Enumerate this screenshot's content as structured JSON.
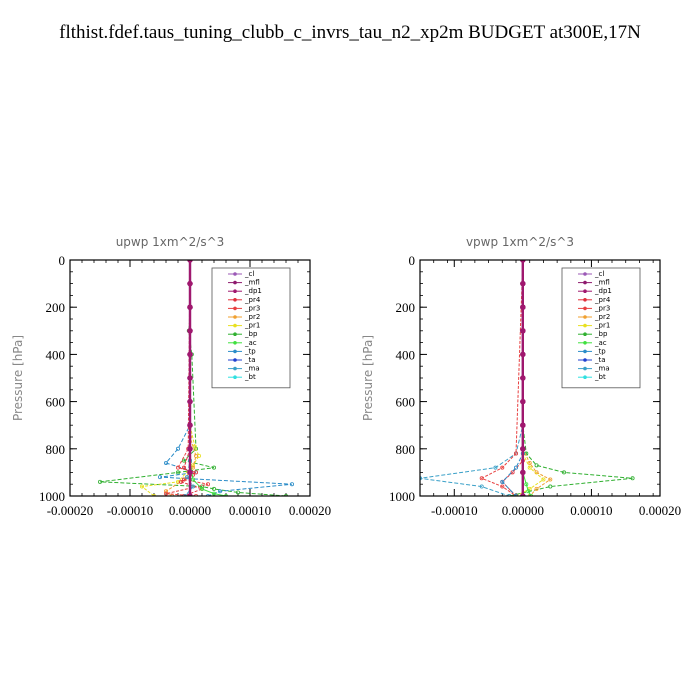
{
  "title": "flthist.fdef.taus_tuning_clubb_c_invrs_tau_n2_xp2m  BUDGET at300E,17N",
  "series_styles": [
    {
      "name": "_cl",
      "color": "#9b59b6"
    },
    {
      "name": "_mfl",
      "color": "#8e1a6e"
    },
    {
      "name": "_dp1",
      "color": "#a0186e"
    },
    {
      "name": "_pr4",
      "color": "#e0303c"
    },
    {
      "name": "_pr3",
      "color": "#e84040"
    },
    {
      "name": "_pr2",
      "color": "#f0a030"
    },
    {
      "name": "_pr1",
      "color": "#e8e020"
    },
    {
      "name": "_bp",
      "color": "#30b030"
    },
    {
      "name": "_ac",
      "color": "#40e040"
    },
    {
      "name": "_tp",
      "color": "#2a8cc8"
    },
    {
      "name": "_ta",
      "color": "#2040d0"
    },
    {
      "name": "_ma",
      "color": "#3aa0c8"
    },
    {
      "name": "_bt",
      "color": "#30e0e0"
    }
  ],
  "chart_data": [
    {
      "type": "line",
      "title": "upwp  1xm^2/s^3",
      "xlabel": "",
      "ylabel": "Pressure [hPa]",
      "xlim": [
        -0.0002,
        0.0002
      ],
      "ylim": [
        1000,
        0
      ],
      "xticks": [
        "-0.00020",
        "-0.00010",
        "0.00000",
        "0.00010",
        "0.00020"
      ],
      "xtick_values": [
        -0.0002,
        -0.0001,
        0,
        0.0001,
        0.0002
      ],
      "yticks": [
        "0",
        "200",
        "400",
        "600",
        "800",
        "1000"
      ],
      "ytick_values": [
        0,
        200,
        400,
        600,
        800,
        1000
      ],
      "legend_position": "top-right",
      "series": [
        {
          "name": "_bp",
          "x": [
            0,
            1e-06,
            -2e-06,
            3e-06,
            1e-05,
            -1e-05,
            4e-05,
            -2e-05,
            -0.00015,
            2e-05,
            4e-05,
            8e-05,
            0.00016
          ],
          "y": [
            0,
            200,
            300,
            400,
            800,
            850,
            880,
            900,
            940,
            960,
            970,
            985,
            1000
          ]
        },
        {
          "name": "_tp",
          "x": [
            0,
            0,
            -2e-05,
            -4e-05,
            1e-05,
            -5e-05,
            0.00017,
            5e-05,
            3e-05
          ],
          "y": [
            0,
            700,
            800,
            860,
            900,
            920,
            950,
            980,
            1000
          ]
        },
        {
          "name": "_pr1",
          "x": [
            0,
            0,
            8e-06,
            1.5e-05,
            5e-06,
            -2e-05,
            -8e-05,
            -6e-05
          ],
          "y": [
            0,
            700,
            790,
            830,
            870,
            940,
            960,
            1000
          ]
        },
        {
          "name": "_pr2",
          "x": [
            0,
            0,
            1e-05,
            5e-06,
            -1e-05,
            -4e-05,
            -3e-05
          ],
          "y": [
            0,
            750,
            830,
            880,
            930,
            980,
            1000
          ]
        },
        {
          "name": "_pr3",
          "x": [
            0,
            -3e-06,
            -2e-05,
            1e-05,
            -1e-05,
            3e-05,
            -4e-05,
            1e-05
          ],
          "y": [
            0,
            800,
            880,
            900,
            930,
            950,
            990,
            1000
          ]
        },
        {
          "name": "_pr4",
          "x": [
            0,
            0,
            -1e-05,
            5e-06,
            -1.5e-05,
            2e-05,
            -1e-05
          ],
          "y": [
            0,
            800,
            880,
            910,
            940,
            970,
            1000
          ]
        },
        {
          "name": "_ac",
          "x": [
            0,
            0,
            5e-06,
            2e-05,
            4e-05,
            6e-05
          ],
          "y": [
            0,
            850,
            930,
            970,
            990,
            1000
          ]
        },
        {
          "name": "_ma",
          "x": [
            0,
            0,
            -5e-06,
            5e-06,
            -8e-06
          ],
          "y": [
            0,
            850,
            920,
            960,
            1000
          ]
        },
        {
          "name": "_cl",
          "x": [
            0,
            0,
            0,
            0,
            0,
            0,
            0,
            0,
            0,
            0,
            0
          ],
          "y": [
            0,
            100,
            200,
            300,
            400,
            500,
            600,
            700,
            800,
            900,
            1000
          ]
        },
        {
          "name": "_mfl",
          "x": [
            0,
            0,
            0,
            0,
            0,
            0,
            0,
            0,
            0,
            0,
            0
          ],
          "y": [
            0,
            100,
            200,
            300,
            400,
            500,
            600,
            700,
            800,
            900,
            1000
          ]
        },
        {
          "name": "_dp1",
          "x": [
            0,
            0,
            0,
            0,
            0,
            0,
            0,
            0,
            0,
            0,
            0
          ],
          "y": [
            0,
            100,
            200,
            300,
            400,
            500,
            600,
            700,
            800,
            900,
            1000
          ]
        }
      ]
    },
    {
      "type": "line",
      "title": "vpwp  1xm^2/s^3",
      "xlabel": "",
      "ylabel": "Pressure [hPa]",
      "xlim": [
        -0.00015,
        0.0002
      ],
      "ylim": [
        1000,
        0
      ],
      "xticks": [
        "-0.00010",
        "0.00000",
        "0.00010",
        "0.00020"
      ],
      "xtick_values": [
        -0.0001,
        0,
        0.0001,
        0.0002
      ],
      "yticks": [
        "0",
        "200",
        "400",
        "600",
        "800",
        "1000"
      ],
      "ytick_values": [
        0,
        200,
        400,
        600,
        800,
        1000
      ],
      "legend_position": "top-right",
      "series": [
        {
          "name": "_bp",
          "x": [
            0,
            0,
            5e-06,
            2e-05,
            6e-05,
            0.00016,
            4e-05,
            -2e-05
          ],
          "y": [
            0,
            700,
            820,
            870,
            900,
            925,
            960,
            1000
          ]
        },
        {
          "name": "_ma",
          "x": [
            0,
            0,
            -1e-05,
            -4e-05,
            -0.00015,
            -6e-05,
            -2e-05
          ],
          "y": [
            0,
            700,
            820,
            880,
            925,
            960,
            1000
          ]
        },
        {
          "name": "_pr2",
          "x": [
            0,
            0,
            1e-05,
            2e-05,
            4e-05,
            2e-05,
            1e-05
          ],
          "y": [
            0,
            800,
            860,
            900,
            930,
            970,
            1000
          ]
        },
        {
          "name": "_pr1",
          "x": [
            0,
            0,
            1e-05,
            3e-05,
            1e-05,
            -1e-05
          ],
          "y": [
            0,
            820,
            880,
            930,
            970,
            1000
          ]
        },
        {
          "name": "_pr3",
          "x": [
            0,
            -1e-05,
            -3e-05,
            -6e-05,
            -3e-05,
            -1e-05
          ],
          "y": [
            0,
            820,
            880,
            925,
            960,
            1000
          ]
        },
        {
          "name": "_pr4",
          "x": [
            0,
            0,
            -1.5e-05,
            -3e-05,
            -1e-05
          ],
          "y": [
            0,
            850,
            900,
            940,
            1000
          ]
        },
        {
          "name": "_tp",
          "x": [
            0,
            0,
            -1e-05,
            -3e-05,
            -1e-05
          ],
          "y": [
            0,
            820,
            880,
            940,
            1000
          ]
        },
        {
          "name": "_ac",
          "x": [
            0,
            0,
            5e-06,
            8e-06,
            1.2e-05
          ],
          "y": [
            0,
            900,
            950,
            980,
            1000
          ]
        },
        {
          "name": "_cl",
          "x": [
            0,
            0,
            0,
            0,
            0,
            0,
            0,
            0,
            0,
            0,
            0
          ],
          "y": [
            0,
            100,
            200,
            300,
            400,
            500,
            600,
            700,
            800,
            900,
            1000
          ]
        },
        {
          "name": "_mfl",
          "x": [
            0,
            0,
            0,
            0,
            0,
            0,
            0,
            0,
            0,
            0,
            0
          ],
          "y": [
            0,
            100,
            200,
            300,
            400,
            500,
            600,
            700,
            800,
            900,
            1000
          ]
        },
        {
          "name": "_dp1",
          "x": [
            0,
            0,
            0,
            0,
            0,
            0,
            0,
            0,
            0,
            0,
            0
          ],
          "y": [
            0,
            100,
            200,
            300,
            400,
            500,
            600,
            700,
            800,
            900,
            1000
          ]
        }
      ]
    }
  ]
}
